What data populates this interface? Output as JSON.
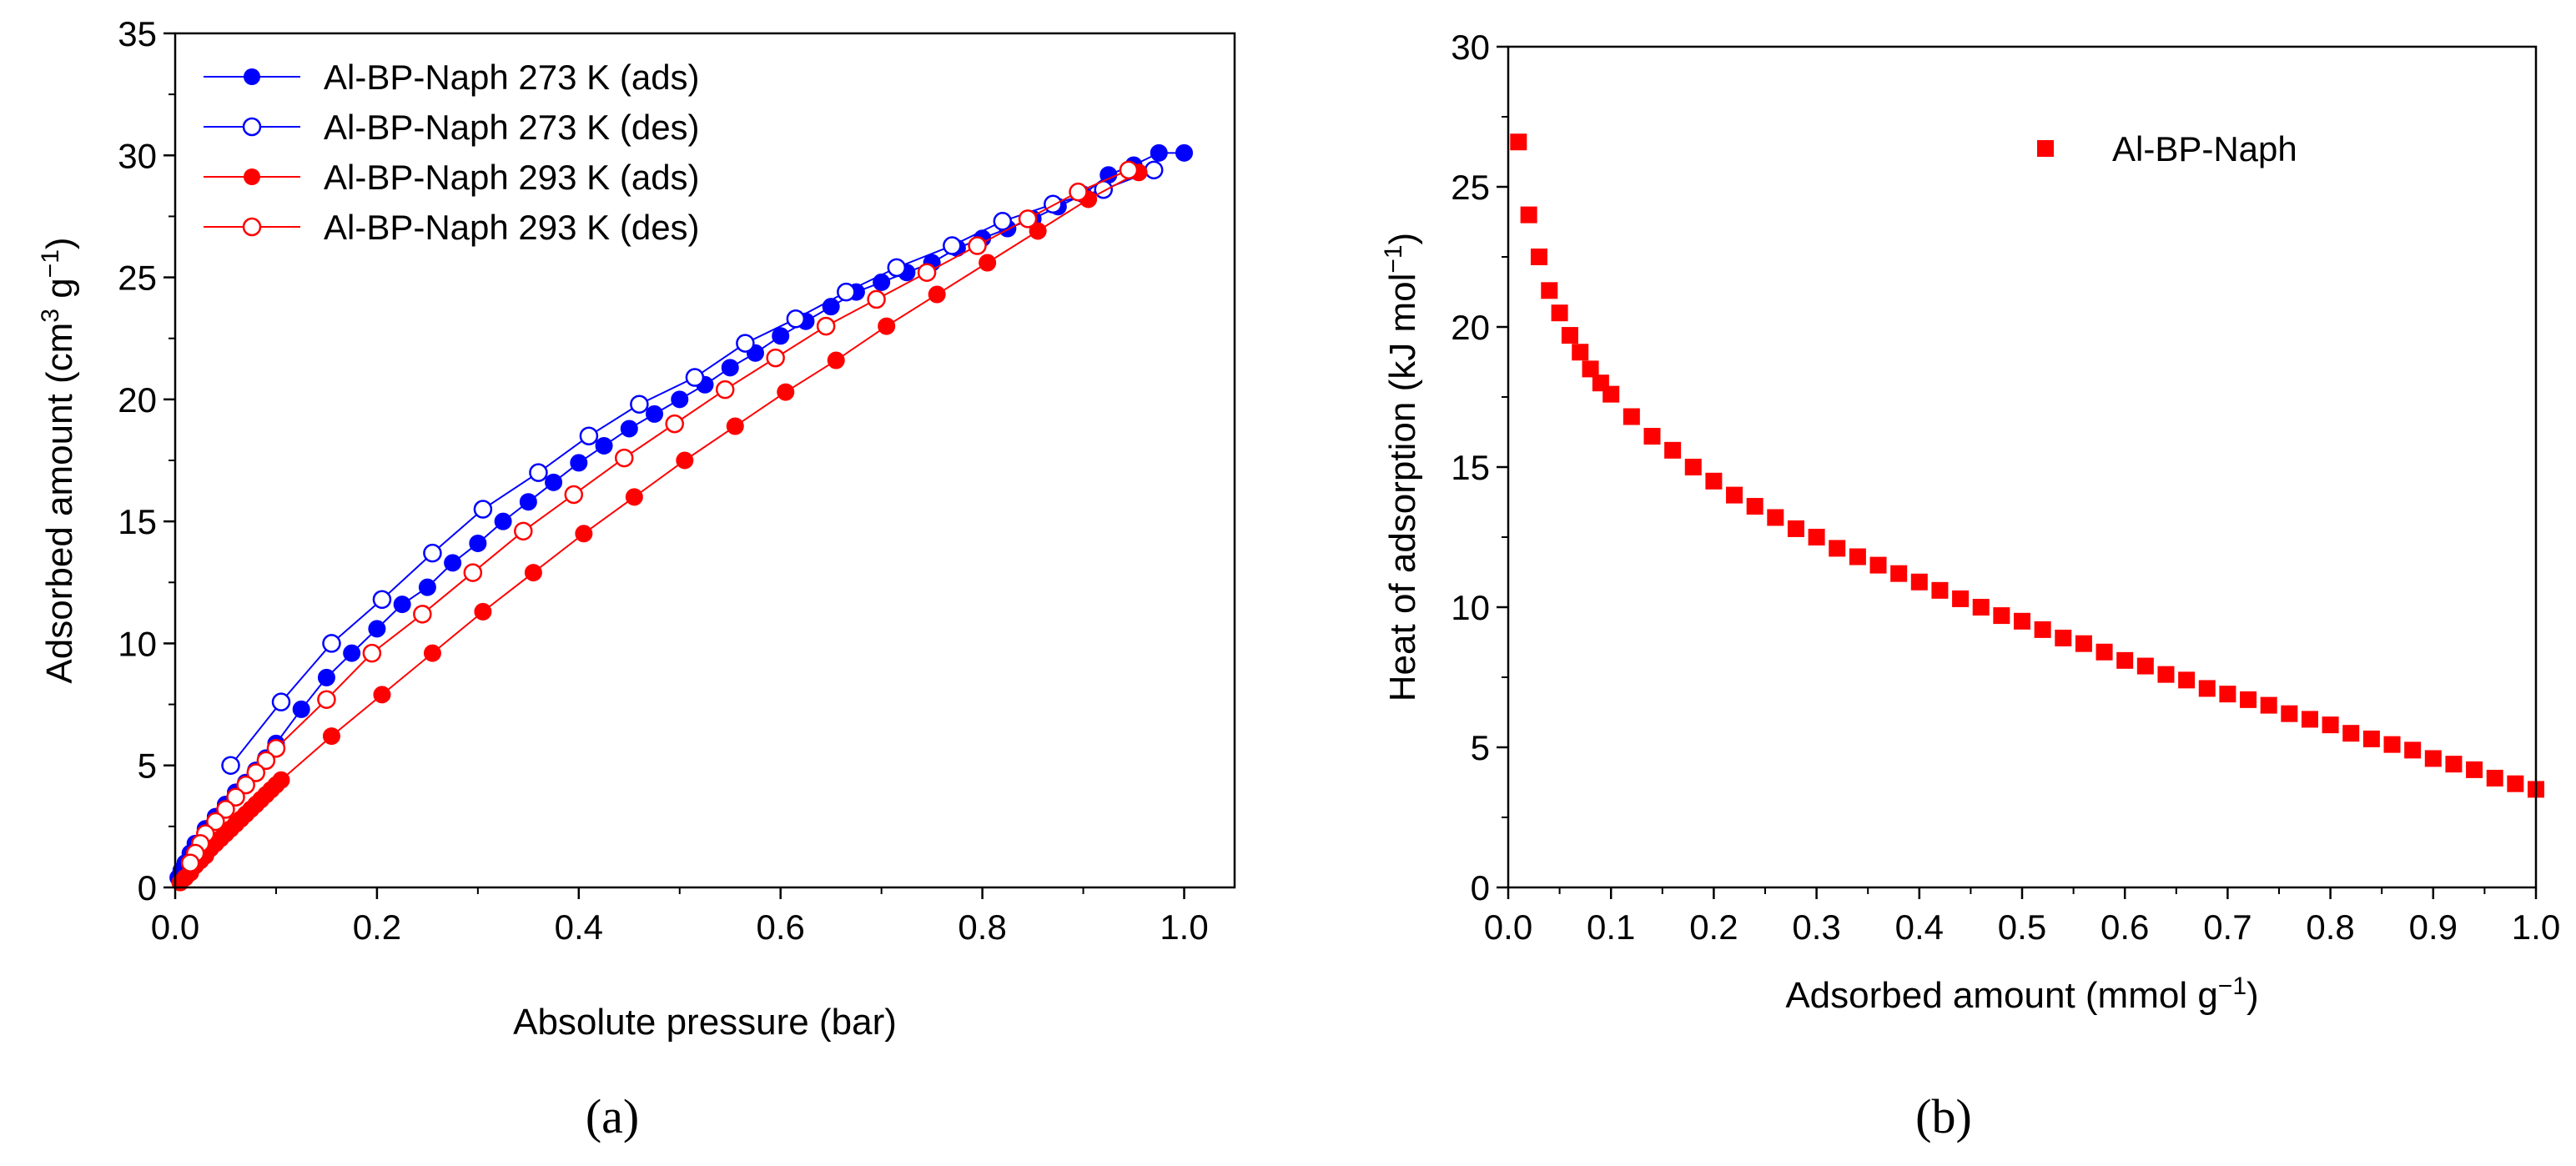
{
  "chart_data": [
    {
      "type": "scatter",
      "panel_label": "(a)",
      "xlabel": "Absolute pressure (bar)",
      "ylabel": {
        "main": "Adsorbed amount (cm",
        "sup1": "3",
        "mid": " g",
        "sup2": "−1",
        "end": ")"
      },
      "xlim": [
        0,
        1.05
      ],
      "ylim": [
        0,
        35
      ],
      "xticks": [
        0.0,
        0.2,
        0.4,
        0.6,
        0.8,
        1.0
      ],
      "xtick_labels": [
        "0.0",
        "0.2",
        "0.4",
        "0.6",
        "0.8",
        "1.0"
      ],
      "yticks": [
        0,
        5,
        10,
        15,
        20,
        25,
        30,
        35
      ],
      "ytick_labels": [
        "0",
        "5",
        "10",
        "15",
        "20",
        "25",
        "30",
        "35"
      ],
      "legend_position": "top-left",
      "series": [
        {
          "name": "Al-BP-Naph 273 K (ads)",
          "color": "#0000ff",
          "marker": "filled-circle",
          "x": [
            0.003,
            0.006,
            0.01,
            0.015,
            0.02,
            0.03,
            0.04,
            0.05,
            0.06,
            0.07,
            0.08,
            0.09,
            0.1,
            0.125,
            0.15,
            0.175,
            0.2,
            0.225,
            0.25,
            0.275,
            0.3,
            0.325,
            0.35,
            0.375,
            0.4,
            0.425,
            0.45,
            0.475,
            0.5,
            0.525,
            0.55,
            0.575,
            0.6,
            0.625,
            0.65,
            0.675,
            0.7,
            0.725,
            0.75,
            0.775,
            0.8,
            0.825,
            0.85,
            0.875,
            0.9,
            0.925,
            0.95,
            0.975,
            1.0
          ],
          "y": [
            0.4,
            0.7,
            1.0,
            1.4,
            1.8,
            2.4,
            2.9,
            3.4,
            3.9,
            4.3,
            4.8,
            5.3,
            5.9,
            7.3,
            8.6,
            9.6,
            10.6,
            11.6,
            12.3,
            13.3,
            14.1,
            15.0,
            15.8,
            16.6,
            17.4,
            18.1,
            18.8,
            19.4,
            20.0,
            20.6,
            21.3,
            21.9,
            22.6,
            23.2,
            23.8,
            24.4,
            24.8,
            25.2,
            25.6,
            26.2,
            26.6,
            27.0,
            27.4,
            27.9,
            28.4,
            29.2,
            29.6,
            30.1,
            30.1
          ]
        },
        {
          "name": "Al-BP-Naph 273 K (des)",
          "color": "#0000ff",
          "marker": "open-circle",
          "x": [
            0.97,
            0.92,
            0.87,
            0.82,
            0.77,
            0.715,
            0.665,
            0.615,
            0.565,
            0.515,
            0.46,
            0.41,
            0.36,
            0.305,
            0.255,
            0.205,
            0.155,
            0.105,
            0.055
          ],
          "y": [
            29.4,
            28.6,
            28.0,
            27.3,
            26.3,
            25.4,
            24.4,
            23.3,
            22.3,
            20.9,
            19.8,
            18.5,
            17.0,
            15.5,
            13.7,
            11.8,
            10.0,
            7.6,
            5.0
          ]
        },
        {
          "name": "Al-BP-Naph 293 K (ads)",
          "color": "#ff0000",
          "marker": "filled-circle",
          "x": [
            0.005,
            0.01,
            0.015,
            0.02,
            0.025,
            0.03,
            0.035,
            0.04,
            0.045,
            0.05,
            0.055,
            0.06,
            0.065,
            0.07,
            0.075,
            0.08,
            0.085,
            0.09,
            0.095,
            0.1,
            0.105,
            0.155,
            0.205,
            0.255,
            0.305,
            0.355,
            0.405,
            0.455,
            0.505,
            0.555,
            0.605,
            0.655,
            0.705,
            0.755,
            0.805,
            0.855,
            0.905,
            0.955
          ],
          "y": [
            0.2,
            0.4,
            0.6,
            0.9,
            1.1,
            1.3,
            1.6,
            1.8,
            2.0,
            2.2,
            2.4,
            2.6,
            2.8,
            3.0,
            3.2,
            3.4,
            3.6,
            3.8,
            4.0,
            4.2,
            4.4,
            6.2,
            7.9,
            9.6,
            11.3,
            12.9,
            14.5,
            16.0,
            17.5,
            18.9,
            20.3,
            21.6,
            23.0,
            24.3,
            25.6,
            26.9,
            28.2,
            29.3
          ]
        },
        {
          "name": "Al-BP-Naph 293 K (des)",
          "color": "#ff0000",
          "marker": "open-circle",
          "x": [
            0.945,
            0.895,
            0.845,
            0.795,
            0.745,
            0.695,
            0.645,
            0.595,
            0.545,
            0.495,
            0.445,
            0.395,
            0.345,
            0.295,
            0.245,
            0.195,
            0.15,
            0.1,
            0.09,
            0.08,
            0.07,
            0.06,
            0.05,
            0.04,
            0.03,
            0.025,
            0.02,
            0.015
          ],
          "y": [
            29.4,
            28.5,
            27.4,
            26.3,
            25.2,
            24.1,
            23.0,
            21.7,
            20.4,
            19.0,
            17.6,
            16.1,
            14.6,
            12.9,
            11.2,
            9.6,
            7.7,
            5.7,
            5.2,
            4.7,
            4.2,
            3.7,
            3.2,
            2.7,
            2.2,
            1.8,
            1.4,
            1.0
          ]
        }
      ]
    },
    {
      "type": "scatter",
      "panel_label": "(b)",
      "xlabel": {
        "main": "Adsorbed amount (mmol g",
        "sup": "−1",
        "end": ")"
      },
      "ylabel": {
        "main": "Heat of adsorption (kJ mol",
        "sup": "−1",
        "end": ")"
      },
      "xlim": [
        0,
        1.0
      ],
      "ylim": [
        0,
        30
      ],
      "xticks": [
        0.0,
        0.1,
        0.2,
        0.3,
        0.4,
        0.5,
        0.6,
        0.7,
        0.8,
        0.9,
        1.0
      ],
      "xtick_labels": [
        "0.0",
        "0.1",
        "0.2",
        "0.3",
        "0.4",
        "0.5",
        "0.6",
        "0.7",
        "0.8",
        "0.9",
        "1.0"
      ],
      "yticks": [
        0,
        5,
        10,
        15,
        20,
        25,
        30
      ],
      "ytick_labels": [
        "0",
        "5",
        "10",
        "15",
        "20",
        "25",
        "30"
      ],
      "legend_position": "top-right",
      "series": [
        {
          "name": "Al-BP-Naph",
          "color": "#ff0000",
          "marker": "filled-square",
          "x": [
            0.01,
            0.02,
            0.03,
            0.04,
            0.05,
            0.06,
            0.07,
            0.08,
            0.09,
            0.1,
            0.12,
            0.14,
            0.16,
            0.18,
            0.2,
            0.22,
            0.24,
            0.26,
            0.28,
            0.3,
            0.32,
            0.34,
            0.36,
            0.38,
            0.4,
            0.42,
            0.44,
            0.46,
            0.48,
            0.5,
            0.52,
            0.54,
            0.56,
            0.58,
            0.6,
            0.62,
            0.64,
            0.66,
            0.68,
            0.7,
            0.72,
            0.74,
            0.76,
            0.78,
            0.8,
            0.82,
            0.84,
            0.86,
            0.88,
            0.9,
            0.92,
            0.94,
            0.96,
            0.98,
            1.0
          ],
          "y": [
            26.6,
            24.0,
            22.5,
            21.3,
            20.5,
            19.7,
            19.1,
            18.5,
            18.0,
            17.6,
            16.8,
            16.1,
            15.6,
            15.0,
            14.5,
            14.0,
            13.6,
            13.2,
            12.8,
            12.5,
            12.1,
            11.8,
            11.5,
            11.2,
            10.9,
            10.6,
            10.3,
            10.0,
            9.7,
            9.5,
            9.2,
            8.9,
            8.7,
            8.4,
            8.1,
            7.9,
            7.6,
            7.4,
            7.1,
            6.9,
            6.7,
            6.5,
            6.2,
            6.0,
            5.8,
            5.5,
            5.3,
            5.1,
            4.9,
            4.6,
            4.4,
            4.2,
            3.9,
            3.7,
            3.5
          ]
        }
      ]
    }
  ]
}
